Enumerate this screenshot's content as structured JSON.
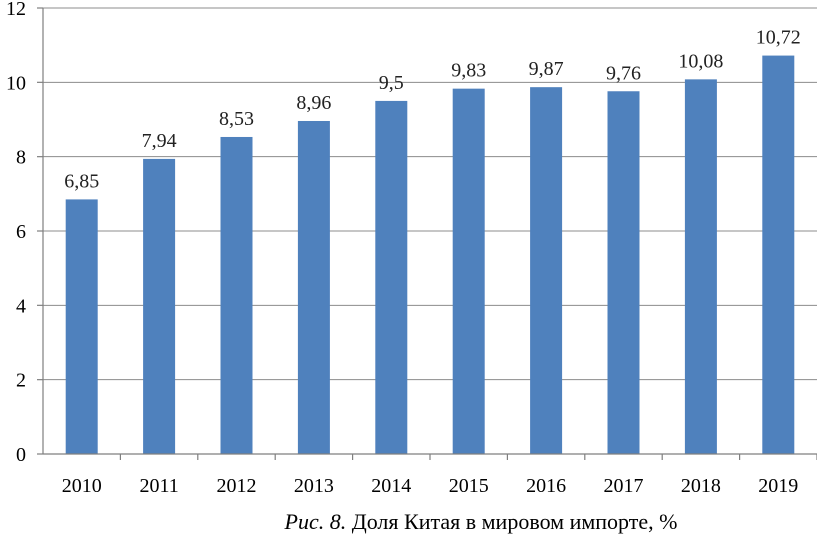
{
  "chart_data": {
    "type": "bar",
    "categories": [
      "2010",
      "2011",
      "2012",
      "2013",
      "2014",
      "2015",
      "2016",
      "2017",
      "2018",
      "2019"
    ],
    "values": [
      6.85,
      7.94,
      8.53,
      8.96,
      9.5,
      9.83,
      9.87,
      9.76,
      10.08,
      10.72
    ],
    "data_labels": [
      "6,85",
      "7,94",
      "8,53",
      "8,96",
      "9,5",
      "9,83",
      "9,87",
      "9,76",
      "10,08",
      "10,72"
    ],
    "ylim": [
      0,
      12
    ],
    "yticks": [
      0,
      2,
      4,
      6,
      8,
      10,
      12
    ],
    "grid": true,
    "legend": "none",
    "bar_color": "#4f81bd"
  },
  "caption": {
    "figure_label": "Рис. 8.",
    "text": " Доля Китая в мировом импорте, %"
  }
}
